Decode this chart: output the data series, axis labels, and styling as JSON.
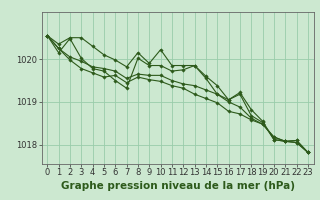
{
  "background_color": "#cce8d0",
  "plot_bg_color": "#cce8d0",
  "grid_color": "#99ccaa",
  "line_color": "#2d5a1b",
  "xlabel": "Graphe pression niveau de la mer (hPa)",
  "xlabel_fontsize": 7.5,
  "tick_fontsize": 6,
  "ylim": [
    1017.55,
    1021.1
  ],
  "xlim": [
    -0.5,
    23.5
  ],
  "yticks": [
    1018,
    1019,
    1020
  ],
  "xticks": [
    0,
    1,
    2,
    3,
    4,
    5,
    6,
    7,
    8,
    9,
    10,
    11,
    12,
    13,
    14,
    15,
    16,
    17,
    18,
    19,
    20,
    21,
    22,
    23
  ],
  "series": [
    [
      1020.55,
      1020.35,
      1020.5,
      1020.5,
      1020.3,
      1020.1,
      1019.98,
      1019.82,
      1020.15,
      1019.9,
      1020.22,
      1019.85,
      1019.85,
      1019.85,
      1019.6,
      1019.38,
      1019.05,
      1019.22,
      1018.82,
      1018.55,
      1018.12,
      1018.08,
      1018.1,
      1017.82
    ],
    [
      1020.55,
      1020.25,
      1020.05,
      1019.95,
      1019.82,
      1019.78,
      1019.72,
      1019.55,
      1019.65,
      1019.62,
      1019.62,
      1019.5,
      1019.42,
      1019.38,
      1019.28,
      1019.18,
      1019.0,
      1018.88,
      1018.62,
      1018.48,
      1018.18,
      1018.08,
      1018.05,
      1017.82
    ],
    [
      1020.55,
      1020.25,
      1019.98,
      1019.78,
      1019.68,
      1019.58,
      1019.62,
      1019.45,
      1019.58,
      1019.52,
      1019.48,
      1019.38,
      1019.32,
      1019.18,
      1019.08,
      1018.98,
      1018.78,
      1018.72,
      1018.58,
      1018.48,
      1018.18,
      1018.08,
      1018.05,
      1017.82
    ],
    [
      1020.55,
      1020.15,
      1020.48,
      1020.02,
      1019.78,
      1019.72,
      1019.5,
      1019.32,
      1020.02,
      1019.85,
      1019.85,
      1019.72,
      1019.75,
      1019.85,
      1019.55,
      1019.18,
      1019.05,
      1019.18,
      1018.68,
      1018.52,
      1018.12,
      1018.08,
      1018.1,
      1017.82
    ]
  ]
}
